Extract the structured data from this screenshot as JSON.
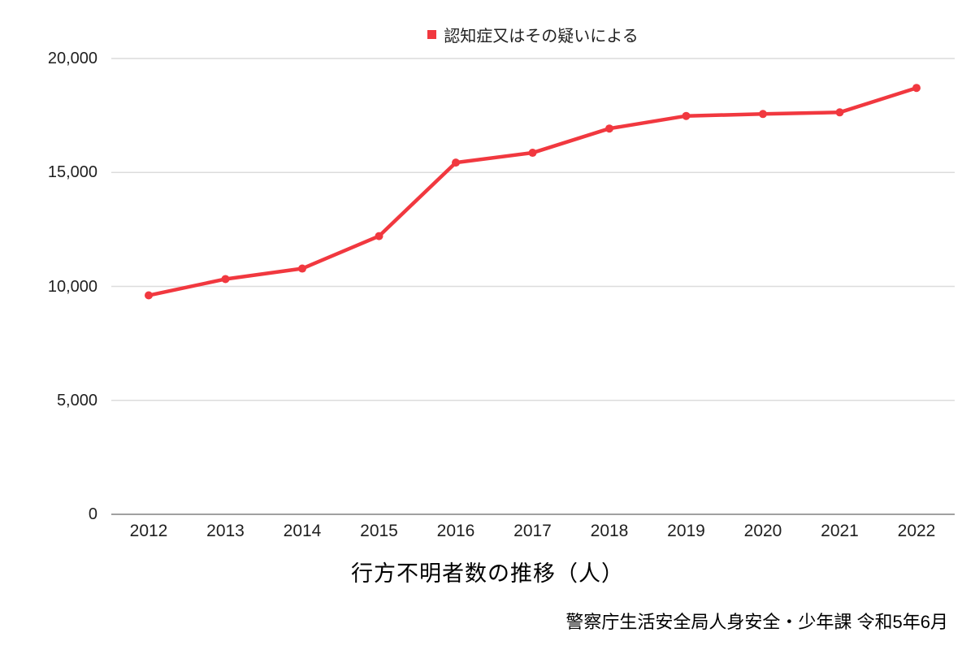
{
  "page": {
    "background": "#ffffff"
  },
  "legend": {
    "label": "認知症又はその疑いによる",
    "marker_color": "#f1383f"
  },
  "title": "行方不明者数の推移（人）",
  "source": "警察庁生活安全局人身安全・少年課 令和5年6月",
  "chart_data": {
    "type": "line",
    "title": "行方不明者数の推移（人）",
    "xlabel": "",
    "ylabel": "",
    "categories": [
      "2012",
      "2013",
      "2014",
      "2015",
      "2016",
      "2017",
      "2018",
      "2019",
      "2020",
      "2021",
      "2022"
    ],
    "series": [
      {
        "name": "認知症又はその疑いによる",
        "color": "#f1383f",
        "values": [
          9607,
          10322,
          10783,
          12208,
          15432,
          15863,
          16927,
          17479,
          17565,
          17636,
          18709
        ]
      }
    ],
    "ylim": [
      0,
      20000
    ],
    "yticks": [
      {
        "value": 0,
        "label": "0"
      },
      {
        "value": 5000,
        "label": "5,000"
      },
      {
        "value": 10000,
        "label": "10,000"
      },
      {
        "value": 15000,
        "label": "15,000"
      },
      {
        "value": 20000,
        "label": "20,000"
      }
    ],
    "grid": true,
    "gridline_color": "#dcdcdc",
    "axis_line_color": "#808080",
    "legend_position": "top"
  }
}
